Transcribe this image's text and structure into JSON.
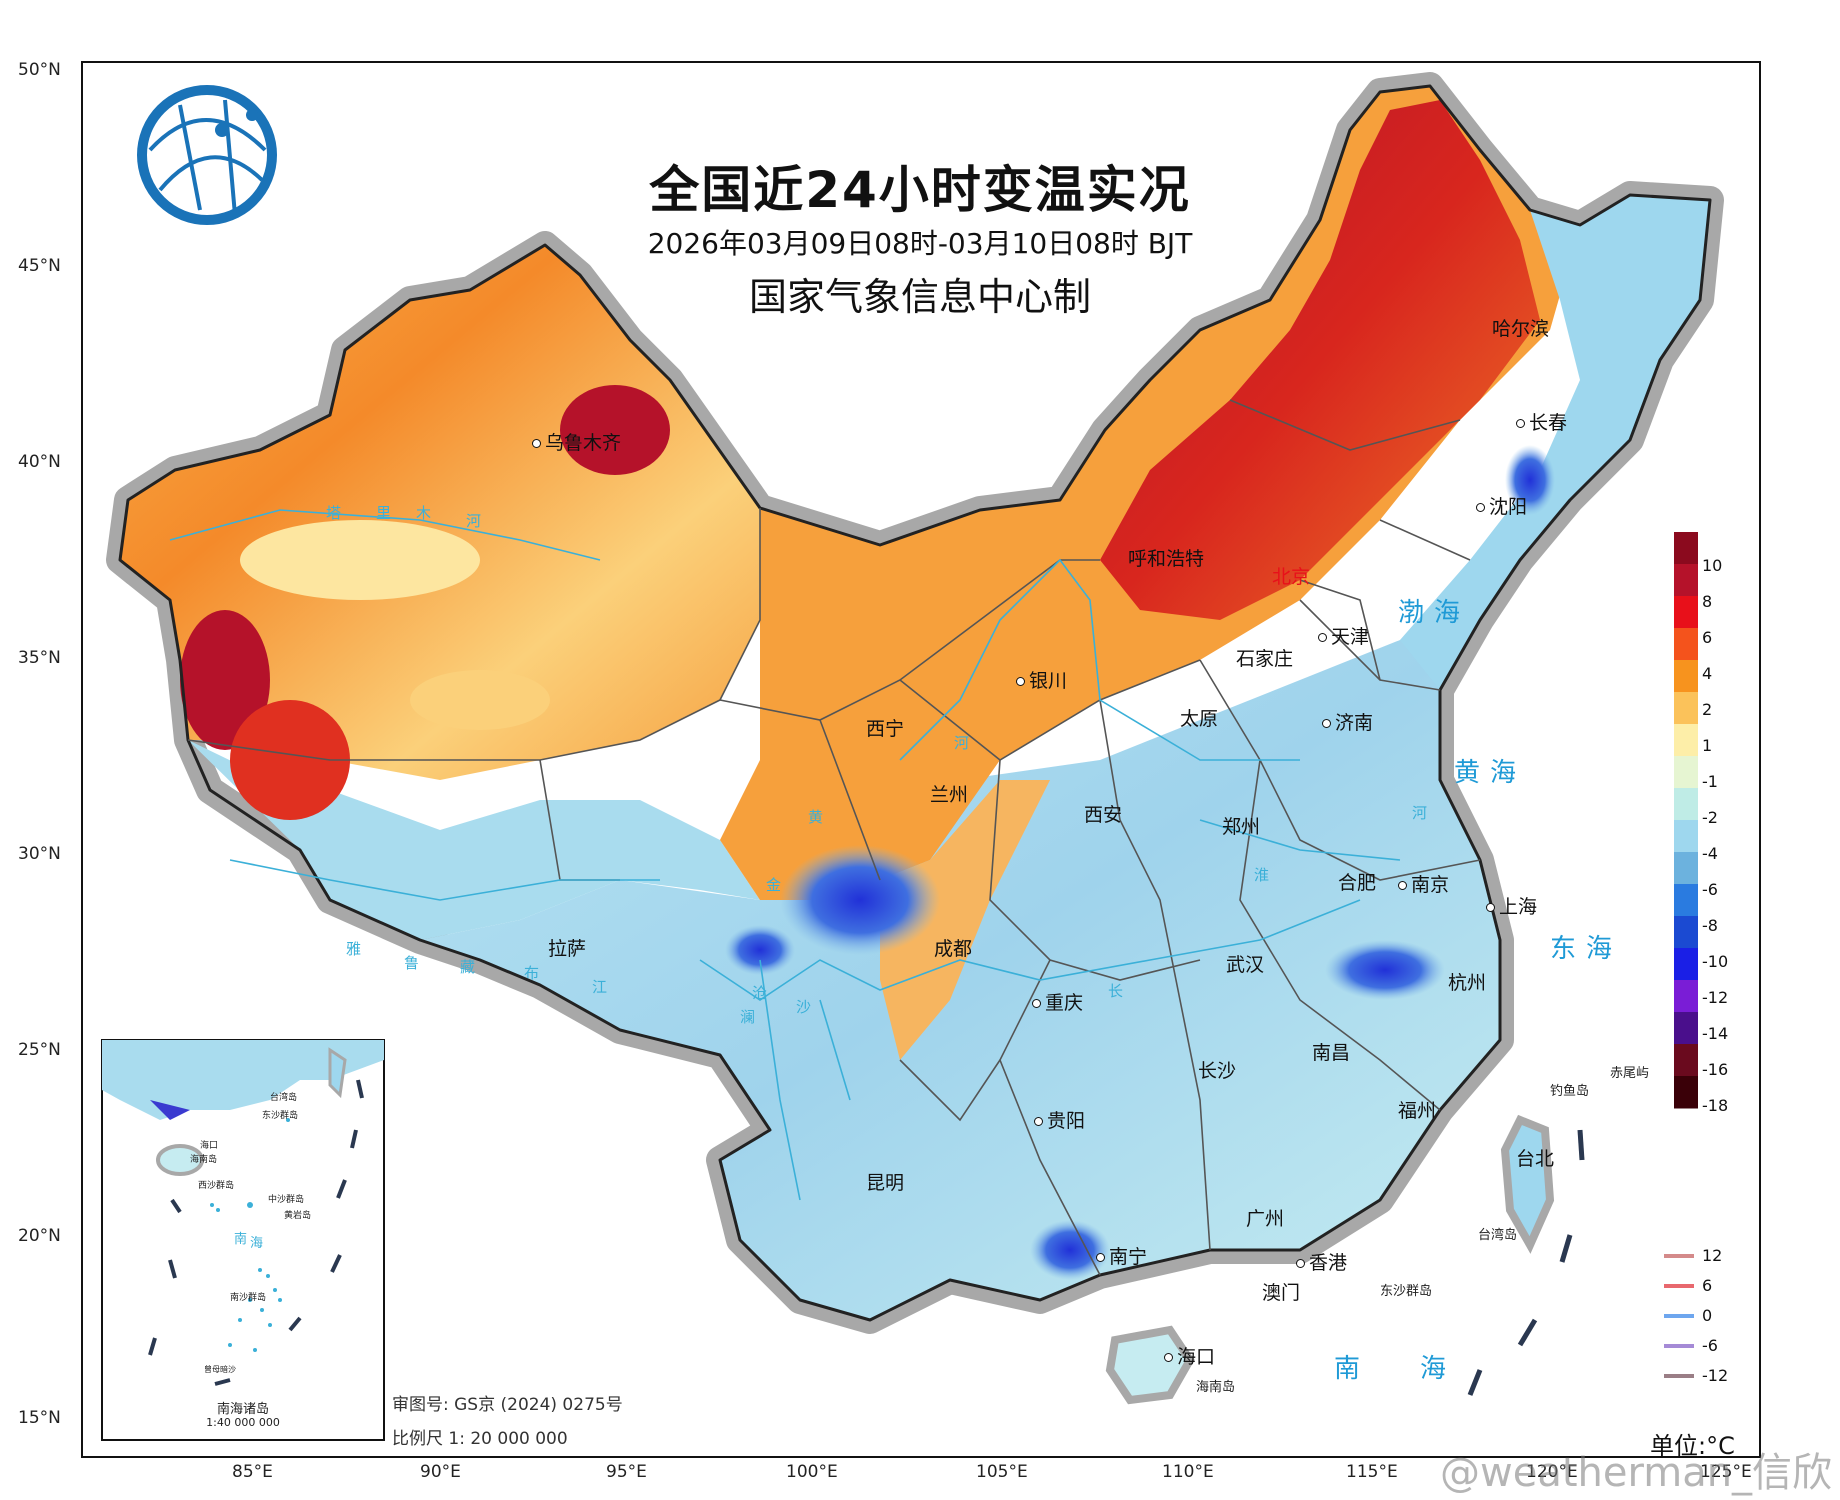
{
  "map": {
    "title": "全国近24小时变温实况",
    "subtitle": "2026年03月09日08时-03月10日08时 BJT",
    "maker": "国家气象信息中心制",
    "lat_labels": [
      "50°N",
      "45°N",
      "40°N",
      "35°N",
      "30°N",
      "25°N",
      "20°N",
      "15°N"
    ],
    "lon_labels": [
      "85°E",
      "90°E",
      "95°E",
      "100°E",
      "105°E",
      "110°E",
      "115°E",
      "120°E",
      "125°E"
    ],
    "cities": [
      "乌鲁木齐",
      "哈尔滨",
      "长春",
      "沈阳",
      "呼和浩特",
      "北京",
      "天津",
      "石家庄",
      "银川",
      "太原",
      "济南",
      "西宁",
      "兰州",
      "西安",
      "郑州",
      "合肥",
      "南京",
      "上海",
      "拉萨",
      "成都",
      "武汉",
      "杭州",
      "重庆",
      "南昌",
      "长沙",
      "福州",
      "贵阳",
      "台北",
      "昆明",
      "广州",
      "南宁",
      "香港",
      "澳门",
      "海口"
    ],
    "seas": [
      "渤海",
      "黄海",
      "东海",
      "南海"
    ],
    "rivers": [
      "塔",
      "里",
      "木",
      "河",
      "黄",
      "河",
      "雅",
      "鲁",
      "藏",
      "布",
      "江",
      "金",
      "沙",
      "澜",
      "沧",
      "长",
      "淮",
      "河"
    ],
    "islands": [
      "钓鱼岛",
      "赤尾屿",
      "台湾岛",
      "东沙群岛",
      "海南岛"
    ],
    "inset": {
      "title": "南海诸岛",
      "scale": "1:40 000 000",
      "labels": [
        "台湾岛",
        "东沙群岛",
        "西沙群岛",
        "中沙群岛",
        "黄岩岛",
        "南",
        "海",
        "南沙群岛",
        "曾母暗沙",
        "海口",
        "海南岛"
      ]
    },
    "review_no": "审图号: GS京 (2024) 0275号",
    "scale_text": "比例尺 1: 20 000 000",
    "unit": "单位:°C",
    "watermark": "@weatherman_信欣"
  },
  "legend": {
    "labels": [
      "10",
      "8",
      "6",
      "4",
      "2",
      "1",
      "-1",
      "-2",
      "-4",
      "-6",
      "-8",
      "-10",
      "-12",
      "-14",
      "-16",
      "-18"
    ],
    "colors": [
      "#8b0a1e",
      "#b5122a",
      "#e8101a",
      "#f4531c",
      "#f7931e",
      "#fbc25a",
      "#fdeea8",
      "#e6f5d2",
      "#bfece6",
      "#9ed7ee",
      "#6cb2de",
      "#2a7be0",
      "#1b4ad2",
      "#1a1fe6",
      "#7a1dd6",
      "#4a0f8c",
      "#6a0a1e",
      "#3a0008"
    ],
    "contour_labels": [
      "12",
      "6",
      "0",
      "-6",
      "-12"
    ],
    "contour_colors": [
      "#d48a8a",
      "#e8686e",
      "#6ea6ee",
      "#a58ad6",
      "#9a7e86"
    ]
  }
}
